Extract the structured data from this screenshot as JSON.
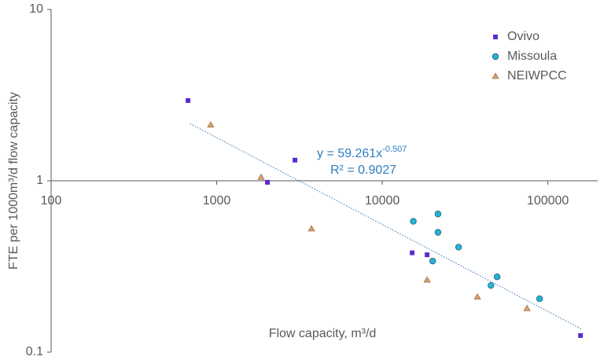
{
  "chart_data": {
    "type": "scatter",
    "x_label": "Flow capacity, m³/d",
    "y_label": "FTE per 1000m³/d flow capacity",
    "xscale": "log",
    "yscale": "log",
    "xlim": [
      100,
      200000
    ],
    "ylim": [
      0.1,
      10
    ],
    "xticks": [
      100,
      1000,
      10000,
      100000
    ],
    "yticks": [
      0.1,
      1,
      10
    ],
    "x_axis_at": 1,
    "legend": "top-right",
    "series": [
      {
        "name": "Ovivo",
        "color": "#5b2bd0",
        "marker": "square",
        "x": [
          671,
          2025,
          2970,
          15150,
          18650,
          157500
        ],
        "values": [
          2.94,
          0.98,
          1.32,
          0.38,
          0.37,
          0.125
        ]
      },
      {
        "name": "Missoula",
        "color": "#27b3d6",
        "marker": "circle",
        "x": [
          15400,
          21700,
          21700,
          20150,
          28900,
          49400,
          45300,
          89100
        ],
        "values": [
          0.58,
          0.64,
          0.5,
          0.34,
          0.41,
          0.275,
          0.245,
          0.205
        ]
      },
      {
        "name": "NEIWPCC",
        "color": "#d9a06e",
        "marker": "triangle",
        "x": [
          920,
          1855,
          3735,
          18650,
          37550,
          74800
        ],
        "values": [
          2.12,
          1.05,
          0.525,
          0.264,
          0.21,
          0.18
        ]
      }
    ],
    "trendline": {
      "color": "#4a86c8",
      "coefficient": 59.261,
      "exponent": -0.507,
      "x": [
        690,
        160000
      ],
      "label": "y = 59.261x",
      "label_exponent": "-0.507",
      "r2_label": "R² = 0.9027"
    }
  }
}
